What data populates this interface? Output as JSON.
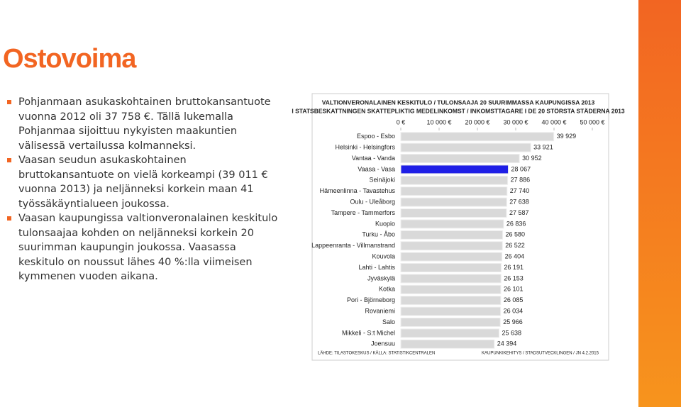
{
  "slide": {
    "title": "Ostovoima",
    "bullets": [
      "Pohjanmaan asukaskohtainen bruttokansantuote vuonna 2012 oli 37 758 €. Tällä lukemalla Pohjanmaa sijoittuu nykyisten maakuntien välisessä vertailussa kolmanneksi.",
      "Vaasan seudun asukaskohtainen bruttokansantuote on vielä korkeampi (39 011 € vuonna 2013) ja neljänneksi korkein maan 41 työssäkäyntialueen joukossa.",
      "Vaasan kaupungissa valtionveronalainen keskitulo tulonsaajaa kohden on neljänneksi korkein 20 suurimman kaupungin joukossa. Vaasassa keskitulo on noussut lähes 40 %:lla viimeisen kymmenen vuoden aikana."
    ]
  },
  "chart_data": {
    "type": "hbar",
    "title": "VALTIONVERONALAINEN KESKITULO / TULONSAAJA 20 SUURIMMASSA KAUPUNGISSA 2013",
    "subtitle": "I STATSBESKATTNINGEN SKATTEPLIKTIG MEDELINKOMST / INKOMSTTAGARE I DE 20 STÖRSTA STÄDERNA 2013",
    "source": "LÄHDE: TILASTOKESKUS / KÄLLA: STATISTIKCENTRALEN",
    "credit": "KAUPUNKIKEHITYS / STADSUTVECKLINGEN / JN 4.2.2015",
    "categories": [
      "Espoo - Esbo",
      "Helsinki - Helsingfors",
      "Vantaa - Vanda",
      "Vaasa - Vasa",
      "Seinäjoki",
      "Hämeenlinna - Tavastehus",
      "Oulu - Uleåborg",
      "Tampere - Tammerfors",
      "Kuopio",
      "Turku - Åbo",
      "Lappeenranta - Villmanstrand",
      "Kouvola",
      "Lahti - Lahtis",
      "Jyväskylä",
      "Kotka",
      "Pori - Björneborg",
      "Rovaniemi",
      "Salo",
      "Mikkeli - S:t Michel",
      "Joensuu"
    ],
    "values": [
      39929,
      33921,
      30952,
      28067,
      27886,
      27740,
      27638,
      27587,
      26836,
      26580,
      26522,
      26404,
      26191,
      26153,
      26101,
      26085,
      26034,
      25966,
      25638,
      24394
    ],
    "value_labels": [
      "39 929",
      "33 921",
      "30 952",
      "28 067",
      "27 886",
      "27 740",
      "27 638",
      "27 587",
      "26 836",
      "26 580",
      "26 522",
      "26 404",
      "26 191",
      "26 153",
      "26 101",
      "26 085",
      "26 034",
      "25 966",
      "25 638",
      "24 394"
    ],
    "colors": [
      "#d9d9d9",
      "#d9d9d9",
      "#d9d9d9",
      "#1f1fe6",
      "#d9d9d9",
      "#d9d9d9",
      "#d9d9d9",
      "#d9d9d9",
      "#d9d9d9",
      "#d9d9d9",
      "#d9d9d9",
      "#d9d9d9",
      "#d9d9d9",
      "#d9d9d9",
      "#d9d9d9",
      "#d9d9d9",
      "#d9d9d9",
      "#d9d9d9",
      "#d9d9d9",
      "#d9d9d9"
    ],
    "xlim": [
      0,
      50000
    ],
    "xticks": [
      {
        "value": 0,
        "label": "0 €"
      },
      {
        "value": 10000,
        "label": "10 000 €"
      },
      {
        "value": 20000,
        "label": "20 000 €"
      },
      {
        "value": 30000,
        "label": "30 000 €"
      },
      {
        "value": 40000,
        "label": "40 000 €"
      },
      {
        "value": 50000,
        "label": "50 000 €"
      }
    ],
    "grid": false
  }
}
